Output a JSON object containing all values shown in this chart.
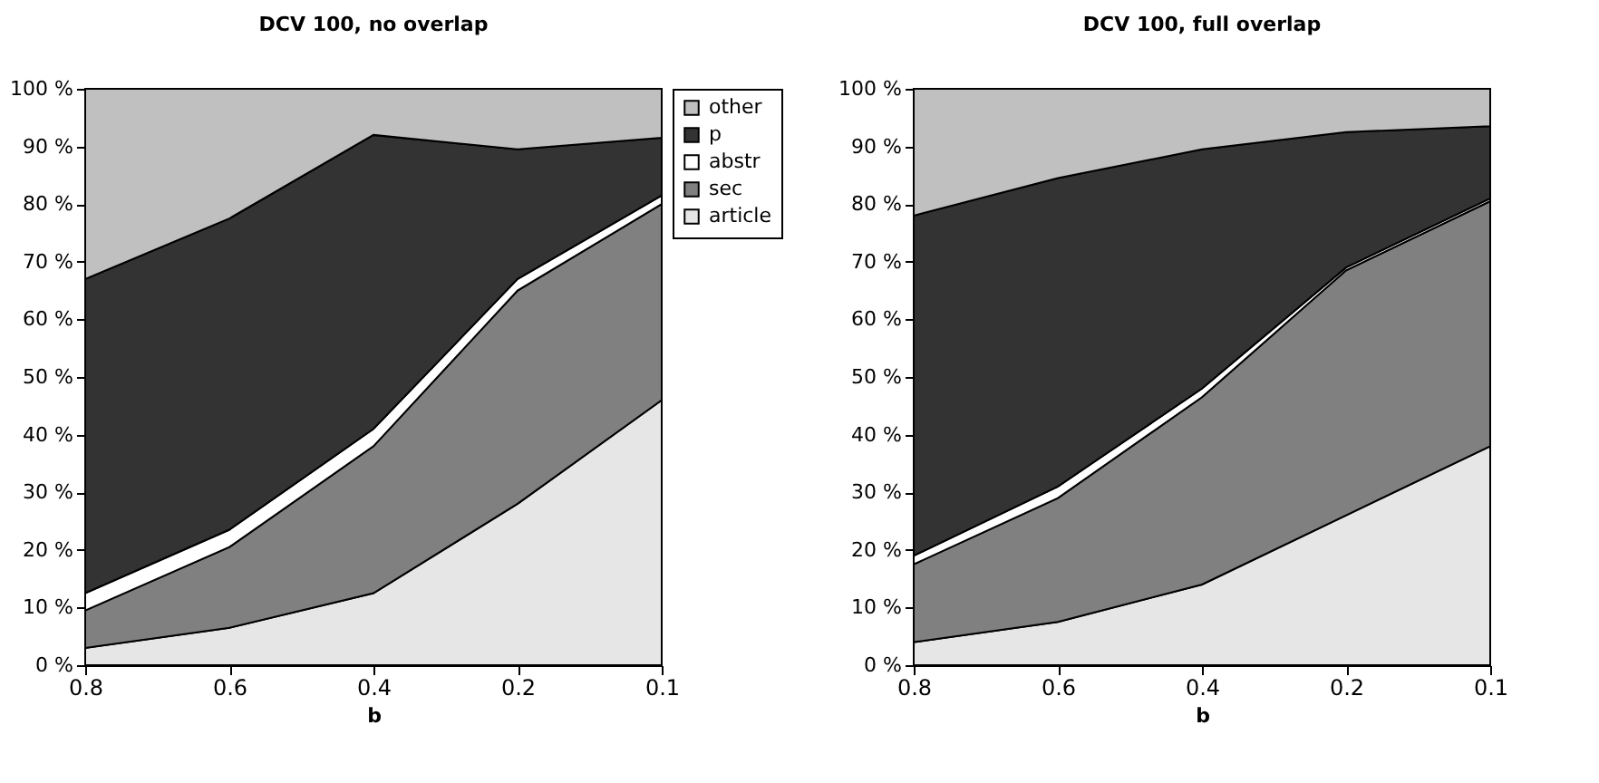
{
  "chart_data": [
    {
      "type": "area",
      "title": "DCV 100, no overlap",
      "xlabel": "b",
      "categories": [
        "0.8",
        "0.6",
        "0.4",
        "0.2",
        "0.1"
      ],
      "stacked": true,
      "legend": "right",
      "grid": false,
      "ylim": [
        0,
        100
      ],
      "yticks": [
        {
          "value": 0,
          "label": "0 %"
        },
        {
          "value": 10,
          "label": "10 %"
        },
        {
          "value": 20,
          "label": "20 %"
        },
        {
          "value": 30,
          "label": "30 %"
        },
        {
          "value": 40,
          "label": "40 %"
        },
        {
          "value": 50,
          "label": "50 %"
        },
        {
          "value": 60,
          "label": "60 %"
        },
        {
          "value": 70,
          "label": "70 %"
        },
        {
          "value": 80,
          "label": "80 %"
        },
        {
          "value": 90,
          "label": "90 %"
        },
        {
          "value": 100,
          "label": "100 %"
        }
      ],
      "series": [
        {
          "name": "article",
          "color": "#e6e6e6",
          "values": [
            3,
            6.5,
            12.5,
            28,
            46
          ]
        },
        {
          "name": "sec",
          "color": "#808080",
          "values": [
            6.5,
            14,
            25.5,
            37,
            34
          ]
        },
        {
          "name": "abstr",
          "color": "#ffffff",
          "values": [
            3,
            3,
            3,
            2,
            1.5
          ]
        },
        {
          "name": "p",
          "color": "#333333",
          "values": [
            54.5,
            54,
            51,
            22.5,
            10
          ]
        },
        {
          "name": "other",
          "color": "#c0c0c0",
          "values": [
            33,
            22.5,
            8,
            10.5,
            8.5
          ]
        }
      ]
    },
    {
      "type": "area",
      "title": "DCV 100, full overlap",
      "xlabel": "b",
      "categories": [
        "0.8",
        "0.6",
        "0.4",
        "0.2",
        "0.1"
      ],
      "stacked": true,
      "grid": false,
      "ylim": [
        0,
        100
      ],
      "yticks": [
        {
          "value": 0,
          "label": "0 %"
        },
        {
          "value": 10,
          "label": "10 %"
        },
        {
          "value": 20,
          "label": "20 %"
        },
        {
          "value": 30,
          "label": "30 %"
        },
        {
          "value": 40,
          "label": "40 %"
        },
        {
          "value": 50,
          "label": "50 %"
        },
        {
          "value": 60,
          "label": "60 %"
        },
        {
          "value": 70,
          "label": "70 %"
        },
        {
          "value": 80,
          "label": "80 %"
        },
        {
          "value": 90,
          "label": "90 %"
        },
        {
          "value": 100,
          "label": "100 %"
        }
      ],
      "series": [
        {
          "color": "#e6e6e6",
          "values": [
            4,
            7.5,
            14,
            26,
            38
          ]
        },
        {
          "color": "#808080",
          "values": [
            13.5,
            21.5,
            32.5,
            42.5,
            42.5
          ]
        },
        {
          "color": "#ffffff",
          "values": [
            1.5,
            2,
            1.5,
            0.5,
            0.5
          ]
        },
        {
          "color": "#333333",
          "values": [
            59,
            53.5,
            41.5,
            23.5,
            12.5
          ]
        },
        {
          "color": "#c0c0c0",
          "values": [
            22,
            15.5,
            10.5,
            7.5,
            6.5
          ]
        }
      ]
    }
  ]
}
